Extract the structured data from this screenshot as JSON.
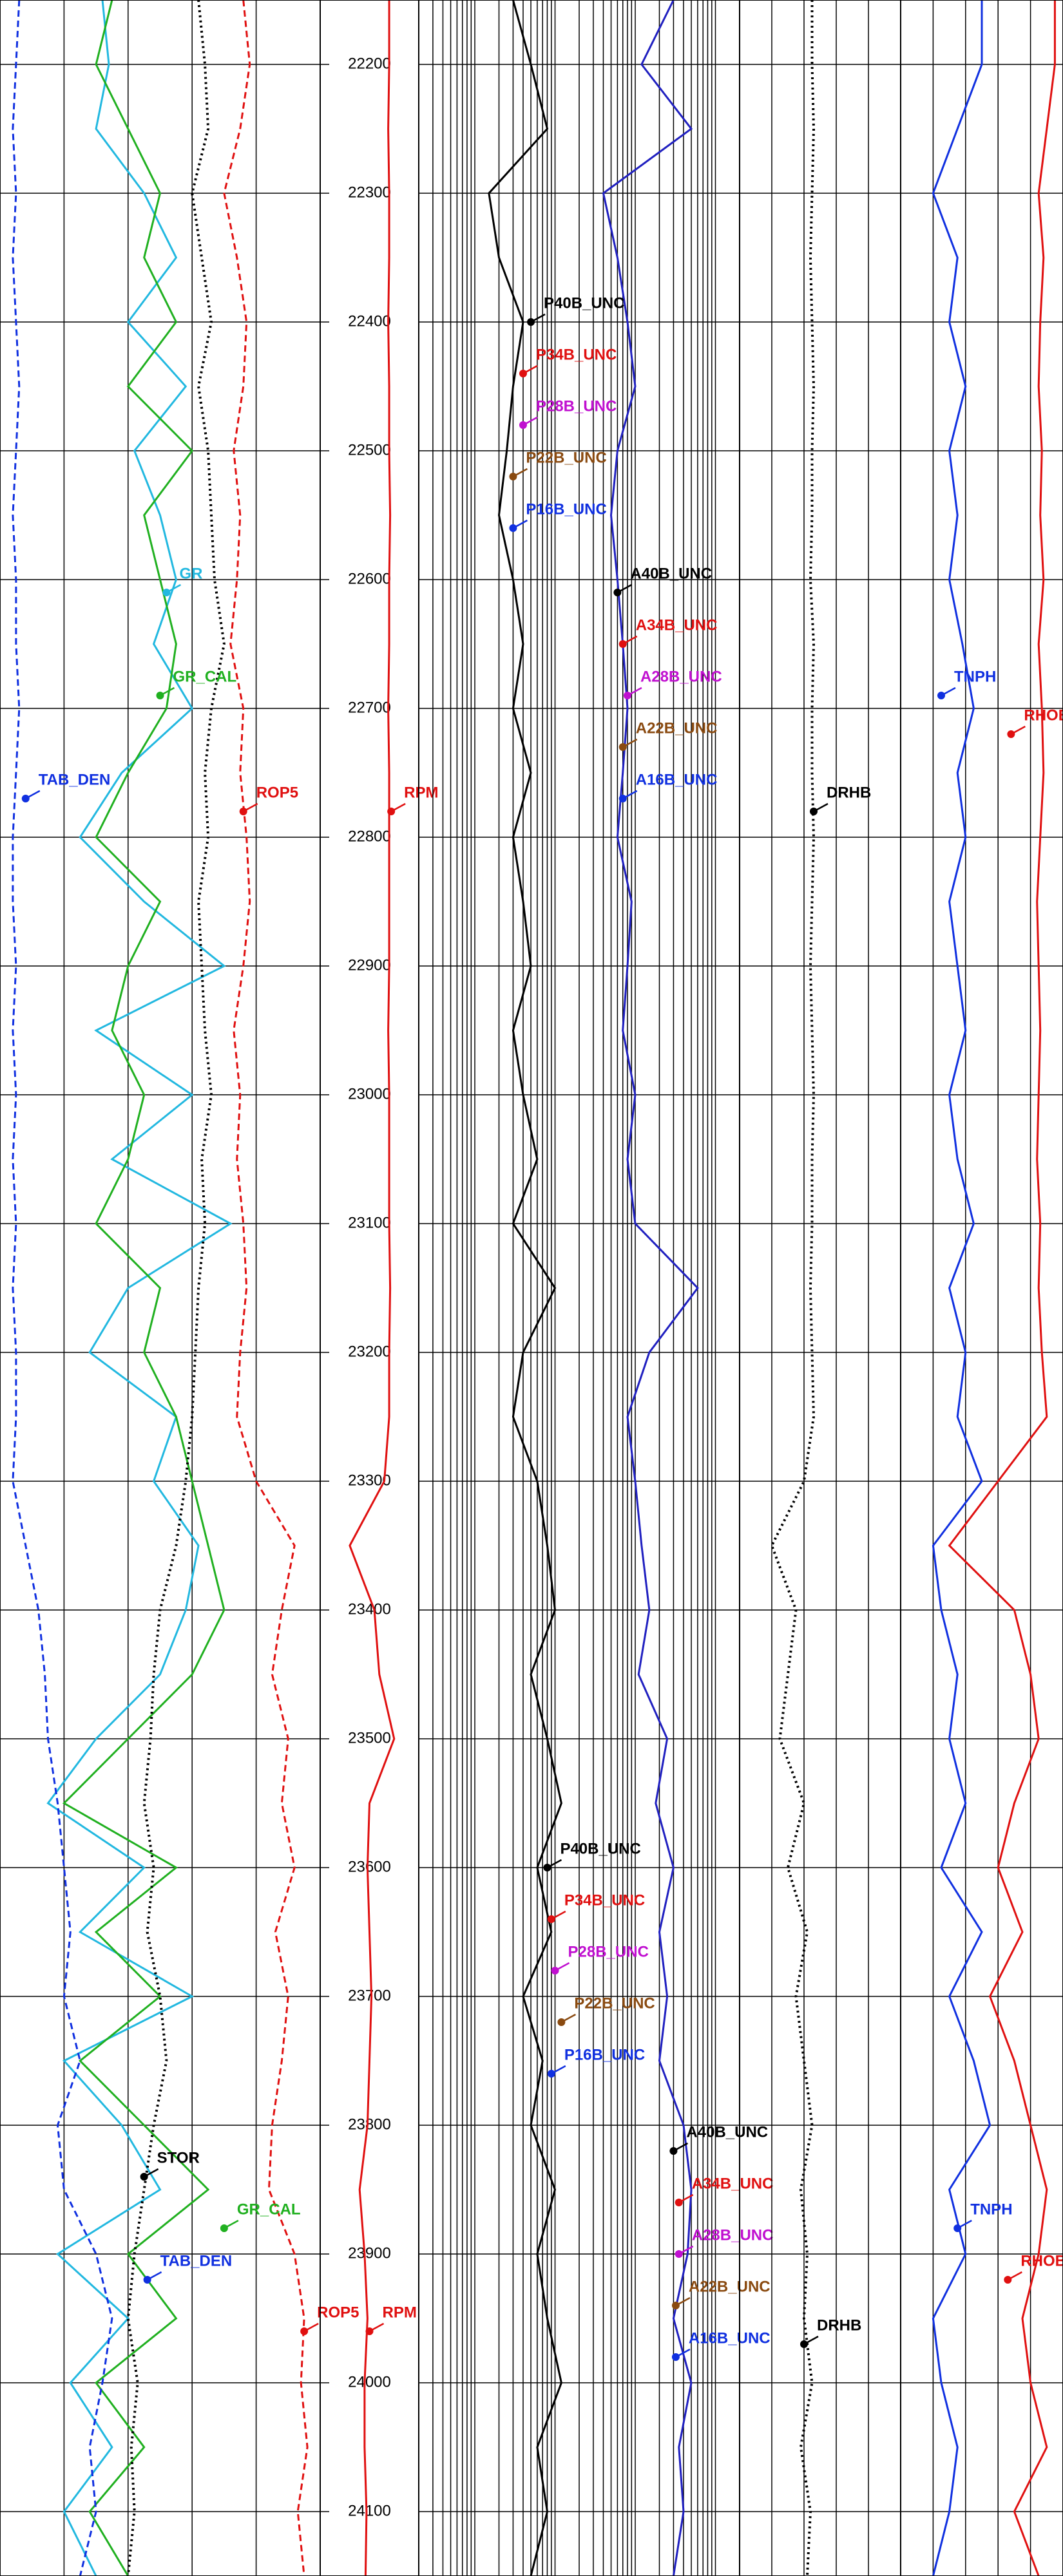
{
  "chart_data": [
    {
      "type": "line",
      "xlim": [
        0,
        100
      ],
      "ylim": [
        22150,
        24150
      ],
      "xticks": [
        0,
        20,
        40,
        60,
        80,
        100
      ],
      "yticks": [
        22200,
        22300,
        22400,
        22500,
        22600,
        22700,
        22800,
        22900,
        23000,
        23100,
        23200,
        23300,
        23400,
        23500,
        23600,
        23700,
        23800,
        23900,
        24000,
        24100
      ],
      "grid": true,
      "x": [
        22150,
        22200,
        22250,
        22300,
        22350,
        22400,
        22450,
        22500,
        22550,
        22600,
        22650,
        22700,
        22750,
        22800,
        22850,
        22900,
        22950,
        23000,
        23050,
        23100,
        23150,
        23200,
        23250,
        23300,
        23350,
        23400,
        23450,
        23500,
        23550,
        23600,
        23650,
        23700,
        23750,
        23800,
        23850,
        23900,
        23950,
        24000,
        24050,
        24100,
        24150
      ],
      "series": [
        {
          "color": "#22b8e0",
          "style": "solid",
          "values": [
            32,
            34,
            30,
            45,
            55,
            40,
            58,
            42,
            50,
            55,
            48,
            60,
            38,
            25,
            45,
            70,
            30,
            60,
            35,
            72,
            40,
            28,
            55,
            48,
            62,
            58,
            50,
            30,
            15,
            45,
            25,
            60,
            20,
            38,
            50,
            18,
            40,
            22,
            35,
            20,
            30
          ]
        },
        {
          "color": "#20b020",
          "style": "solid",
          "values": [
            35,
            30,
            40,
            50,
            45,
            55,
            40,
            60,
            45,
            50,
            55,
            52,
            40,
            30,
            50,
            40,
            35,
            45,
            40,
            30,
            50,
            45,
            55,
            60,
            65,
            70,
            60,
            40,
            20,
            55,
            30,
            50,
            25,
            45,
            65,
            40,
            55,
            30,
            45,
            28,
            40
          ]
        },
        {
          "color": "#1030e0",
          "style": "dashed",
          "values": [
            6,
            5,
            4,
            5,
            4,
            5,
            6,
            5,
            4,
            5,
            5,
            6,
            5,
            4,
            4,
            5,
            4,
            5,
            4,
            5,
            4,
            5,
            5,
            4,
            8,
            12,
            14,
            15,
            18,
            20,
            22,
            20,
            25,
            18,
            20,
            30,
            35,
            32,
            28,
            30,
            25
          ]
        },
        {
          "color": "#e01010",
          "style": "dashed",
          "values": [
            76,
            78,
            75,
            70,
            74,
            77,
            76,
            73,
            75,
            74,
            72,
            76,
            75,
            77,
            78,
            76,
            73,
            75,
            74,
            76,
            77,
            75,
            74,
            80,
            92,
            88,
            85,
            90,
            88,
            92,
            86,
            90,
            88,
            85,
            84,
            92,
            95,
            94,
            96,
            93,
            95
          ]
        },
        {
          "color": "#000000",
          "style": "dotted",
          "values": [
            62,
            64,
            65,
            60,
            63,
            66,
            62,
            65,
            66,
            67,
            70,
            66,
            64,
            65,
            62,
            63,
            64,
            66,
            63,
            64,
            62,
            61,
            60,
            58,
            55,
            50,
            48,
            47,
            45,
            48,
            46,
            50,
            52,
            48,
            45,
            42,
            40,
            43,
            41,
            42,
            40
          ]
        }
      ],
      "annotations": [
        {
          "text": "GR",
          "x": 52,
          "y": 22610,
          "color": "#22b8e0"
        },
        {
          "text": "GR_CAL",
          "x": 50,
          "y": 22690,
          "color": "#20b020"
        },
        {
          "text": "TAB_DEN",
          "x": 8,
          "y": 22770,
          "color": "#1030e0"
        },
        {
          "text": "ROP5",
          "x": 76,
          "y": 22780,
          "color": "#e01010"
        },
        {
          "text": "STOR",
          "x": 45,
          "y": 23840,
          "color": "#000000"
        },
        {
          "text": "GR_CAL",
          "x": 70,
          "y": 23880,
          "color": "#20b020"
        },
        {
          "text": "TAB_DEN",
          "x": 46,
          "y": 23920,
          "color": "#1030e0"
        },
        {
          "text": "ROP5",
          "x": 95,
          "y": 23960,
          "color": "#e01010"
        }
      ]
    },
    {
      "type": "line",
      "xlim": [
        0,
        100
      ],
      "ylim": [
        22150,
        24150
      ],
      "yticks": [
        22200,
        22300,
        22400,
        22500,
        22600,
        22700,
        22800,
        22900,
        23000,
        23100,
        23200,
        23300,
        23400,
        23500,
        23600,
        23700,
        23800,
        23900,
        24000,
        24100
      ],
      "tick_labels": true,
      "x": [
        22150,
        22200,
        22250,
        22300,
        22350,
        22400,
        22450,
        22500,
        22550,
        22600,
        22650,
        22700,
        22750,
        22800,
        22850,
        22900,
        22950,
        23000,
        23050,
        23100,
        23150,
        23200,
        23250,
        23300,
        23350,
        23400,
        23450,
        23500,
        23550,
        23600,
        23650,
        23700,
        23750,
        23800,
        23850,
        23900,
        23950,
        24000,
        24050,
        24100,
        24150
      ],
      "series": [
        {
          "color": "#e01010",
          "style": "solid",
          "values": [
            70,
            70,
            69,
            70,
            70,
            69,
            70,
            70,
            71,
            70,
            70,
            69,
            70,
            70,
            70,
            70,
            69,
            70,
            70,
            70,
            71,
            70,
            70,
            65,
            30,
            55,
            60,
            75,
            50,
            48,
            50,
            52,
            50,
            48,
            40,
            45,
            48,
            45,
            45,
            47,
            46
          ]
        }
      ],
      "annotations": [
        {
          "text": "RPM",
          "x": 72,
          "y": 22780,
          "color": "#e01010"
        },
        {
          "text": "RPM",
          "x": 50,
          "y": 23960,
          "color": "#e01010"
        }
      ]
    },
    {
      "type": "line",
      "xscale": "log",
      "xlim": [
        0.2,
        2000
      ],
      "ylim": [
        22150,
        24150
      ],
      "xticks": [
        0.2,
        0.3,
        0.4,
        0.5,
        0.6,
        0.7,
        0.8,
        0.9,
        1,
        2,
        3,
        4,
        5,
        6,
        7,
        8,
        9,
        10,
        20,
        30,
        40,
        50,
        60,
        70,
        80,
        90,
        100,
        200,
        300,
        400,
        500,
        600,
        700,
        800,
        900,
        1000,
        2000
      ],
      "yticks": [
        22200,
        22300,
        22400,
        22500,
        22600,
        22700,
        22800,
        22900,
        23000,
        23100,
        23200,
        23300,
        23400,
        23500,
        23600,
        23700,
        23800,
        23900,
        24000,
        24100
      ],
      "grid": true,
      "x": [
        22150,
        22200,
        22250,
        22300,
        22350,
        22400,
        22450,
        22500,
        22550,
        22600,
        22650,
        22700,
        22750,
        22800,
        22850,
        22900,
        22950,
        23000,
        23050,
        23100,
        23150,
        23200,
        23250,
        23300,
        23350,
        23400,
        23450,
        23500,
        23550,
        23600,
        23650,
        23700,
        23750,
        23800,
        23850,
        23900,
        23950,
        24000,
        24050,
        24100,
        24150
      ],
      "series": [
        {
          "color": "#000000",
          "style": "solid",
          "values": [
            3,
            5,
            8,
            1.5,
            2,
            4,
            3,
            2.5,
            2,
            3,
            4,
            3,
            5,
            3,
            4,
            5,
            3,
            4,
            6,
            3,
            10,
            4,
            3,
            6,
            8,
            10,
            5,
            8,
            12,
            6,
            9,
            4,
            7,
            5,
            10,
            6,
            8,
            12,
            6,
            8,
            5
          ]
        },
        {
          "color": "#2020c0",
          "style": "solid",
          "values": [
            300,
            120,
            500,
            40,
            60,
            80,
            100,
            60,
            50,
            60,
            70,
            80,
            70,
            60,
            90,
            80,
            70,
            100,
            80,
            100,
            600,
            150,
            80,
            100,
            120,
            150,
            110,
            250,
            180,
            300,
            200,
            250,
            200,
            400,
            500,
            450,
            300,
            500,
            350,
            400,
            300
          ]
        }
      ],
      "annotations": [
        {
          "text": "P40B_UNC",
          "x": 5,
          "y": 22400,
          "color": "#000000"
        },
        {
          "text": "P34B_UNC",
          "x": 4,
          "y": 22440,
          "color": "#e01010"
        },
        {
          "text": "P28B_UNC",
          "x": 4,
          "y": 22480,
          "color": "#c010d0"
        },
        {
          "text": "P22B_UNC",
          "x": 3,
          "y": 22520,
          "color": "#8a4a10"
        },
        {
          "text": "P16B_UNC",
          "x": 3,
          "y": 22560,
          "color": "#1030e0"
        },
        {
          "text": "A40B_UNC",
          "x": 60,
          "y": 22610,
          "color": "#000000"
        },
        {
          "text": "A34B_UNC",
          "x": 70,
          "y": 22650,
          "color": "#e01010"
        },
        {
          "text": "A28B_UNC",
          "x": 80,
          "y": 22690,
          "color": "#c010d0"
        },
        {
          "text": "A22B_UNC",
          "x": 70,
          "y": 22730,
          "color": "#8a4a10"
        },
        {
          "text": "A16B_UNC",
          "x": 70,
          "y": 22770,
          "color": "#1030e0"
        },
        {
          "text": "P40B_UNC",
          "x": 8,
          "y": 23600,
          "color": "#000000"
        },
        {
          "text": "P34B_UNC",
          "x": 9,
          "y": 23640,
          "color": "#e01010"
        },
        {
          "text": "P28B_UNC",
          "x": 10,
          "y": 23680,
          "color": "#c010d0"
        },
        {
          "text": "P22B_UNC",
          "x": 12,
          "y": 23720,
          "color": "#8a4a10"
        },
        {
          "text": "P16B_UNC",
          "x": 9,
          "y": 23760,
          "color": "#1030e0"
        },
        {
          "text": "A40B_UNC",
          "x": 300,
          "y": 23820,
          "color": "#000000"
        },
        {
          "text": "A34B_UNC",
          "x": 350,
          "y": 23860,
          "color": "#e01010"
        },
        {
          "text": "A28B_UNC",
          "x": 350,
          "y": 23900,
          "color": "#c010d0"
        },
        {
          "text": "A22B_UNC",
          "x": 320,
          "y": 23940,
          "color": "#8a4a10"
        },
        {
          "text": "A16B_UNC",
          "x": 320,
          "y": 23980,
          "color": "#1030e0"
        }
      ]
    },
    {
      "type": "line",
      "xlim": [
        0,
        100
      ],
      "ylim": [
        22150,
        24150
      ],
      "xticks": [
        0,
        20,
        40,
        60,
        80,
        100
      ],
      "yticks": [
        22200,
        22300,
        22400,
        22500,
        22600,
        22700,
        22800,
        22900,
        23000,
        23100,
        23200,
        23300,
        23400,
        23500,
        23600,
        23700,
        23800,
        23900,
        24000,
        24100
      ],
      "grid": true,
      "x": [
        22150,
        22200,
        22250,
        22300,
        22350,
        22400,
        22450,
        22500,
        22550,
        22600,
        22650,
        22700,
        22750,
        22800,
        22850,
        22900,
        22950,
        23000,
        23050,
        23100,
        23150,
        23200,
        23250,
        23300,
        23350,
        23400,
        23450,
        23500,
        23550,
        23600,
        23650,
        23700,
        23750,
        23800,
        23850,
        23900,
        23950,
        24000,
        24050,
        24100,
        24150
      ],
      "series": [
        {
          "color": "#000000",
          "style": "dotted",
          "values": [
            45,
            45,
            46,
            45,
            44,
            45,
            46,
            45,
            45,
            44,
            46,
            45,
            45,
            46,
            45,
            44,
            45,
            46,
            45,
            45,
            44,
            45,
            46,
            40,
            20,
            35,
            30,
            25,
            40,
            30,
            42,
            35,
            40,
            45,
            38,
            42,
            40,
            45,
            38,
            44,
            42
          ]
        }
      ],
      "annotations": [
        {
          "text": "DRHB",
          "x": 46,
          "y": 22780,
          "color": "#000000"
        },
        {
          "text": "DRHB",
          "x": 40,
          "y": 23970,
          "color": "#000000"
        }
      ]
    },
    {
      "type": "line",
      "xlim": [
        0,
        100
      ],
      "ylim": [
        22150,
        24150
      ],
      "xticks": [
        0,
        20,
        40,
        60,
        80,
        100
      ],
      "yticks": [
        22200,
        22300,
        22400,
        22500,
        22600,
        22700,
        22800,
        22900,
        23000,
        23100,
        23200,
        23300,
        23400,
        23500,
        23600,
        23700,
        23800,
        23900,
        24000,
        24100
      ],
      "grid": true,
      "x": [
        22150,
        22200,
        22250,
        22300,
        22350,
        22400,
        22450,
        22500,
        22550,
        22600,
        22650,
        22700,
        22750,
        22800,
        22850,
        22900,
        22950,
        23000,
        23050,
        23100,
        23150,
        23200,
        23250,
        23300,
        23350,
        23400,
        23450,
        23500,
        23550,
        23600,
        23650,
        23700,
        23750,
        23800,
        23850,
        23900,
        23950,
        24000,
        24050,
        24100,
        24150
      ],
      "series": [
        {
          "color": "#1030e0",
          "style": "solid",
          "values": [
            50,
            50,
            35,
            20,
            35,
            30,
            40,
            30,
            35,
            30,
            38,
            45,
            35,
            40,
            30,
            35,
            40,
            30,
            35,
            45,
            30,
            40,
            35,
            50,
            20,
            25,
            35,
            30,
            40,
            25,
            50,
            30,
            45,
            55,
            30,
            40,
            20,
            25,
            35,
            30,
            20
          ]
        },
        {
          "color": "#e01010",
          "style": "solid",
          "values": [
            95,
            95,
            90,
            85,
            88,
            86,
            85,
            87,
            86,
            88,
            85,
            87,
            88,
            86,
            84,
            85,
            86,
            85,
            84,
            86,
            85,
            87,
            90,
            60,
            30,
            70,
            80,
            85,
            70,
            60,
            75,
            55,
            70,
            80,
            90,
            85,
            75,
            80,
            90,
            70,
            85
          ]
        }
      ],
      "annotations": [
        {
          "text": "TNPH",
          "x": 25,
          "y": 22690,
          "color": "#1030e0"
        },
        {
          "text": "RHOB",
          "x": 68,
          "y": 22720,
          "color": "#e01010"
        },
        {
          "text": "TNPH",
          "x": 35,
          "y": 23880,
          "color": "#1030e0"
        },
        {
          "text": "RHOB",
          "x": 66,
          "y": 23920,
          "color": "#e01010"
        }
      ]
    }
  ]
}
